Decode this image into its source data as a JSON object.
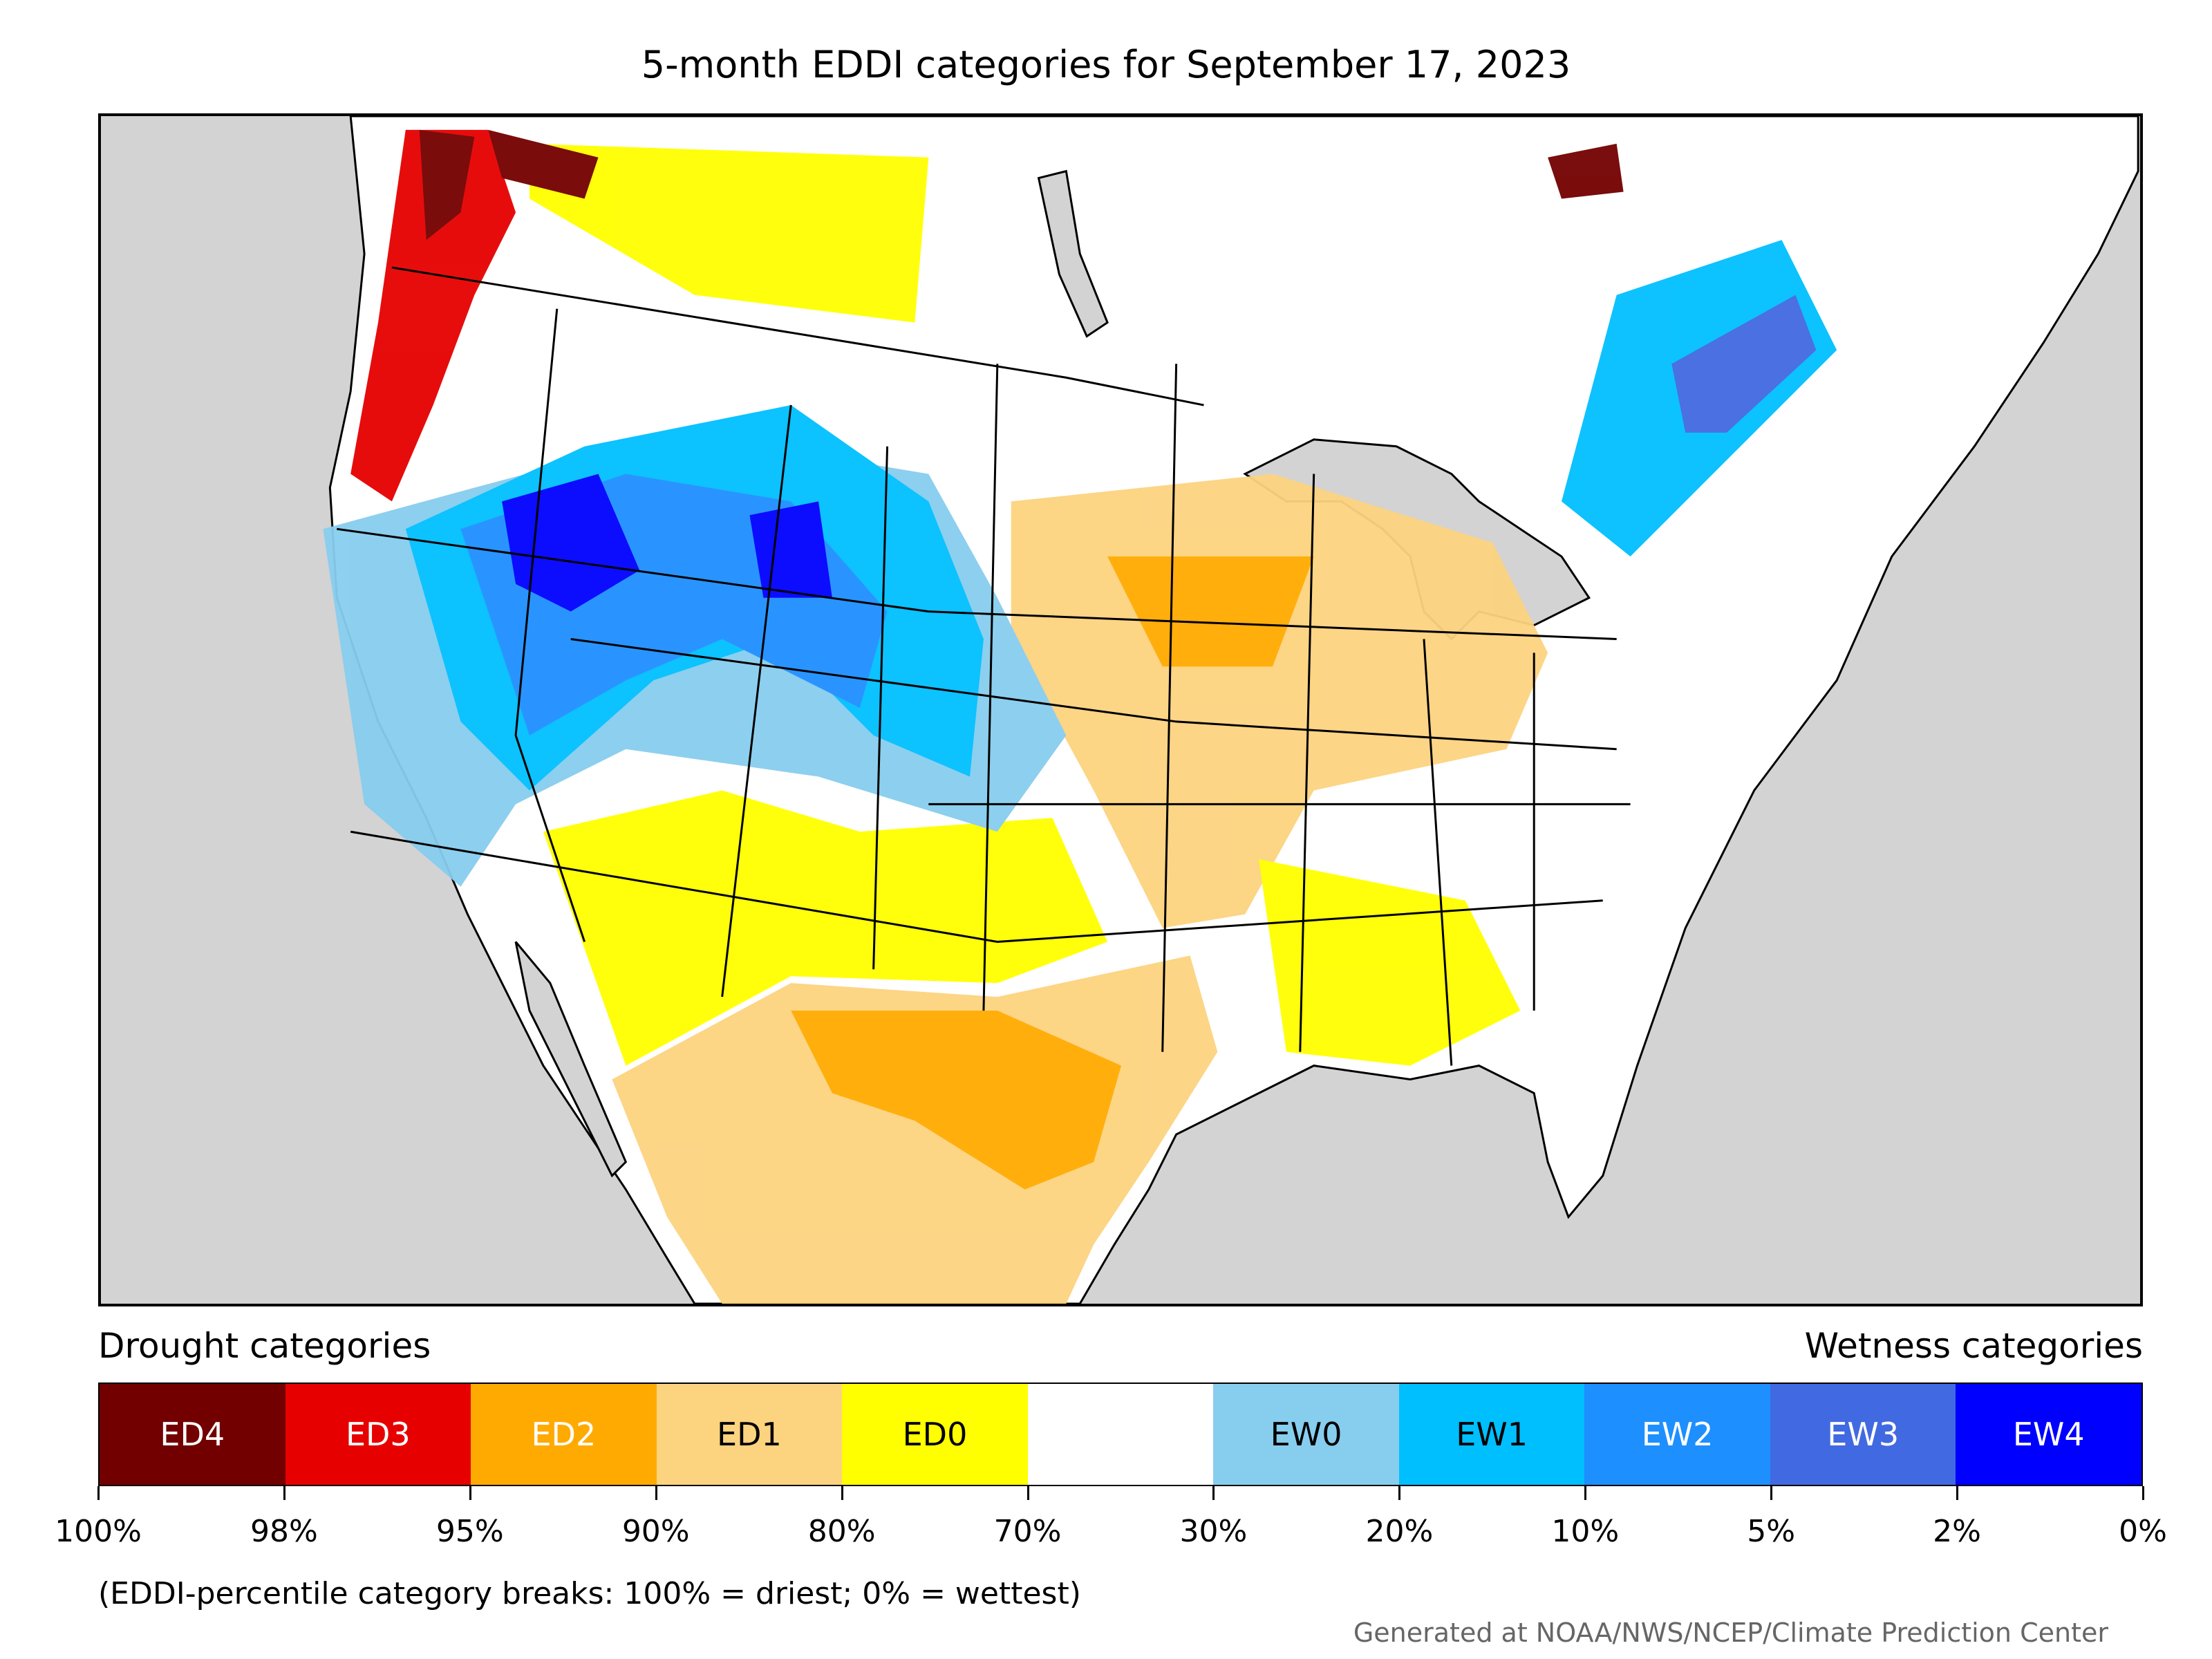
{
  "title": "5-month EDDI categories for September 17, 2023",
  "legend": {
    "drought_heading": "Drought categories",
    "wetness_heading": "Wetness categories",
    "categories": [
      {
        "label": "ED4",
        "color": "#730000",
        "text_color": "#ffffff"
      },
      {
        "label": "ED3",
        "color": "#e60000",
        "text_color": "#ffffff"
      },
      {
        "label": "ED2",
        "color": "#ffaa00",
        "text_color": "#ffffff"
      },
      {
        "label": "ED1",
        "color": "#fcd37f",
        "text_color": "#000000"
      },
      {
        "label": "ED0",
        "color": "#ffff00",
        "text_color": "#000000"
      },
      {
        "label": "",
        "color": "#ffffff",
        "text_color": "#000000"
      },
      {
        "label": "EW0",
        "color": "#87cdee",
        "text_color": "#000000"
      },
      {
        "label": "EW1",
        "color": "#00bfff",
        "text_color": "#000000"
      },
      {
        "label": "EW2",
        "color": "#1e8fff",
        "text_color": "#ffffff"
      },
      {
        "label": "EW3",
        "color": "#4169e1",
        "text_color": "#ffffff"
      },
      {
        "label": "EW4",
        "color": "#0000ff",
        "text_color": "#ffffff"
      }
    ],
    "tick_labels": [
      "100%",
      "98%",
      "95%",
      "90%",
      "80%",
      "70%",
      "30%",
      "20%",
      "10%",
      "5%",
      "2%",
      "0%"
    ]
  },
  "footnote": "(EDDI-percentile category breaks: 100% = driest; 0% = wettest)",
  "credit": "Generated at NOAA/NWS/NCEP/Climate Prediction Center",
  "map": {
    "background_color": "#d3d3d3",
    "land_color": "#ffffff",
    "border_color": "#000000"
  }
}
